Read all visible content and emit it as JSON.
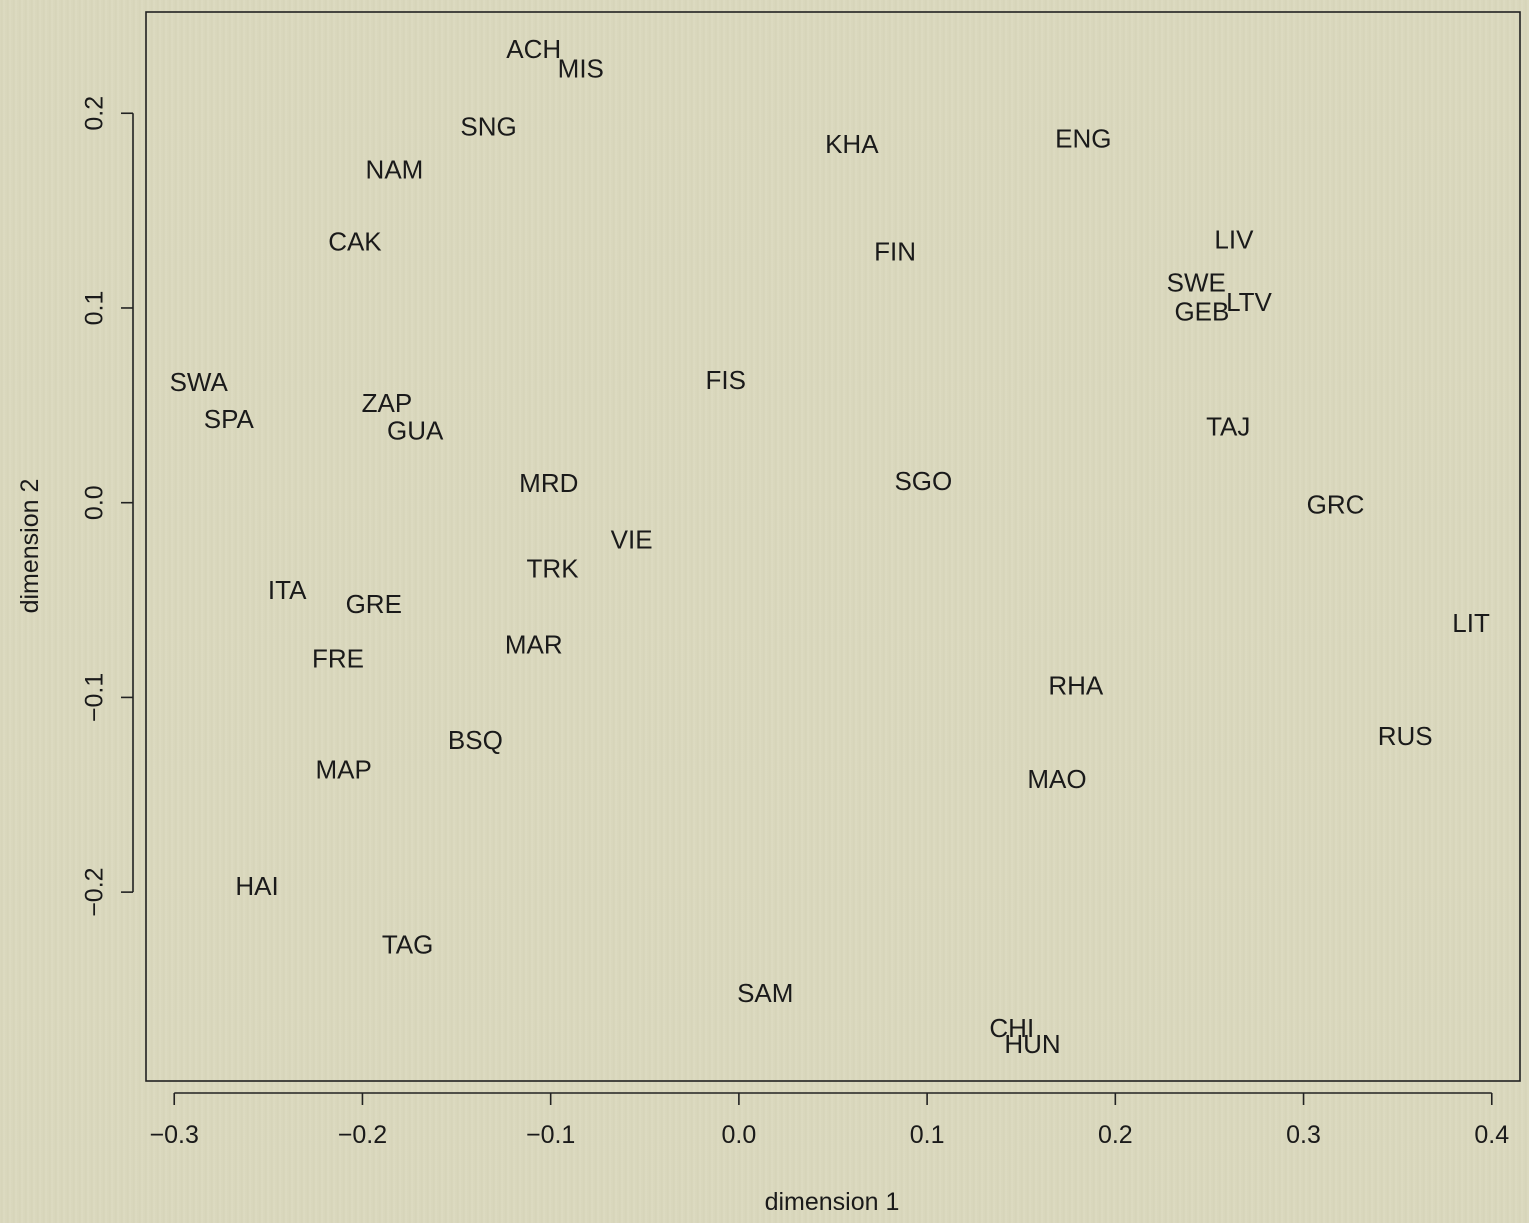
{
  "chart_data": {
    "type": "scatter",
    "title": "",
    "xlabel": "dimension 1",
    "ylabel": "dimension 2",
    "xlim": [
      -0.315,
      0.415
    ],
    "ylim": [
      -0.297,
      0.252
    ],
    "grid": false,
    "xticks": [
      -0.3,
      -0.2,
      -0.1,
      0.0,
      0.1,
      0.2,
      0.3,
      0.4
    ],
    "xtick_labels": [
      "−0.3",
      "−0.2",
      "−0.1",
      "0.0",
      "0.1",
      "0.2",
      "0.3",
      "0.4"
    ],
    "yticks": [
      -0.2,
      -0.1,
      0.0,
      0.1,
      0.2
    ],
    "ytick_labels": [
      "−0.2",
      "−0.1",
      "0.0",
      "0.1",
      "0.2"
    ],
    "points": [
      {
        "label": "ACH",
        "x": -0.109,
        "y": 0.232
      },
      {
        "label": "MIS",
        "x": -0.084,
        "y": 0.222
      },
      {
        "label": "SNG",
        "x": -0.133,
        "y": 0.192
      },
      {
        "label": "NAM",
        "x": -0.183,
        "y": 0.17
      },
      {
        "label": "CAK",
        "x": -0.204,
        "y": 0.133
      },
      {
        "label": "KHA",
        "x": 0.06,
        "y": 0.183
      },
      {
        "label": "ENG",
        "x": 0.183,
        "y": 0.186
      },
      {
        "label": "FIN",
        "x": 0.083,
        "y": 0.128
      },
      {
        "label": "LIV",
        "x": 0.263,
        "y": 0.134
      },
      {
        "label": "SWE",
        "x": 0.243,
        "y": 0.112
      },
      {
        "label": "LTV",
        "x": 0.271,
        "y": 0.102
      },
      {
        "label": "GEB",
        "x": 0.246,
        "y": 0.097
      },
      {
        "label": "SWA",
        "x": -0.287,
        "y": 0.061
      },
      {
        "label": "SPA",
        "x": -0.271,
        "y": 0.042
      },
      {
        "label": "ZAP",
        "x": -0.187,
        "y": 0.05
      },
      {
        "label": "GUA",
        "x": -0.172,
        "y": 0.036
      },
      {
        "label": "FIS",
        "x": -0.007,
        "y": 0.062
      },
      {
        "label": "TAJ",
        "x": 0.26,
        "y": 0.038
      },
      {
        "label": "MRD",
        "x": -0.101,
        "y": 0.009
      },
      {
        "label": "SGO",
        "x": 0.098,
        "y": 0.01
      },
      {
        "label": "GRC",
        "x": 0.317,
        "y": -0.002
      },
      {
        "label": "VIE",
        "x": -0.057,
        "y": -0.02
      },
      {
        "label": "TRK",
        "x": -0.099,
        "y": -0.035
      },
      {
        "label": "ITA",
        "x": -0.24,
        "y": -0.046
      },
      {
        "label": "GRE",
        "x": -0.194,
        "y": -0.053
      },
      {
        "label": "MAR",
        "x": -0.109,
        "y": -0.074
      },
      {
        "label": "FRE",
        "x": -0.213,
        "y": -0.081
      },
      {
        "label": "LIT",
        "x": 0.389,
        "y": -0.063
      },
      {
        "label": "RHA",
        "x": 0.179,
        "y": -0.095
      },
      {
        "label": "BSQ",
        "x": -0.14,
        "y": -0.123
      },
      {
        "label": "RUS",
        "x": 0.354,
        "y": -0.121
      },
      {
        "label": "MAP",
        "x": -0.21,
        "y": -0.138
      },
      {
        "label": "MAO",
        "x": 0.169,
        "y": -0.143
      },
      {
        "label": "HAI",
        "x": -0.256,
        "y": -0.198
      },
      {
        "label": "TAG",
        "x": -0.176,
        "y": -0.228
      },
      {
        "label": "SAM",
        "x": 0.014,
        "y": -0.253
      },
      {
        "label": "CHI",
        "x": 0.145,
        "y": -0.271
      },
      {
        "label": "HUN",
        "x": 0.156,
        "y": -0.279
      }
    ]
  }
}
